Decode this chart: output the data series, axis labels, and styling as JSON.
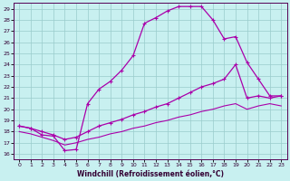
{
  "xlabel": "Windchill (Refroidissement éolien,°C)",
  "background_color": "#c8f0f0",
  "grid_color": "#99cccc",
  "line_color": "#aa00aa",
  "xlim": [
    -0.5,
    23.5
  ],
  "ylim": [
    15.5,
    29.5
  ],
  "xticks": [
    0,
    1,
    2,
    3,
    4,
    5,
    6,
    7,
    8,
    9,
    10,
    11,
    12,
    13,
    14,
    15,
    16,
    17,
    18,
    19,
    20,
    21,
    22,
    23
  ],
  "yticks": [
    16,
    17,
    18,
    19,
    20,
    21,
    22,
    23,
    24,
    25,
    26,
    27,
    28,
    29
  ],
  "main_x": [
    0,
    1,
    2,
    3,
    4,
    5,
    6,
    7,
    8,
    9,
    10,
    11,
    12,
    13,
    14,
    15,
    16,
    17,
    18,
    19,
    20,
    21,
    22,
    23
  ],
  "main_y": [
    18.5,
    18.3,
    17.7,
    17.6,
    16.3,
    16.4,
    20.5,
    21.8,
    22.5,
    23.5,
    24.8,
    27.7,
    28.2,
    28.8,
    29.2,
    29.2,
    29.2,
    28.0,
    26.3,
    26.5,
    24.2,
    22.7,
    21.2,
    21.2
  ],
  "mid_x": [
    0,
    1,
    2,
    3,
    4,
    5,
    6,
    7,
    8,
    9,
    10,
    11,
    12,
    13,
    14,
    15,
    16,
    17,
    18,
    19,
    20,
    21,
    22,
    23
  ],
  "mid_y": [
    18.5,
    18.3,
    18.0,
    17.7,
    17.3,
    17.5,
    18.0,
    18.5,
    18.8,
    19.1,
    19.5,
    19.8,
    20.2,
    20.5,
    21.0,
    21.5,
    22.0,
    22.3,
    22.7,
    24.0,
    21.0,
    21.2,
    21.0,
    21.2
  ],
  "low_x": [
    0,
    1,
    2,
    3,
    4,
    5,
    6,
    7,
    8,
    9,
    10,
    11,
    12,
    13,
    14,
    15,
    16,
    17,
    18,
    19,
    20,
    21,
    22,
    23
  ],
  "low_y": [
    18.0,
    17.8,
    17.5,
    17.2,
    16.8,
    17.0,
    17.3,
    17.5,
    17.8,
    18.0,
    18.3,
    18.5,
    18.8,
    19.0,
    19.3,
    19.5,
    19.8,
    20.0,
    20.3,
    20.5,
    20.0,
    20.3,
    20.5,
    20.3
  ]
}
